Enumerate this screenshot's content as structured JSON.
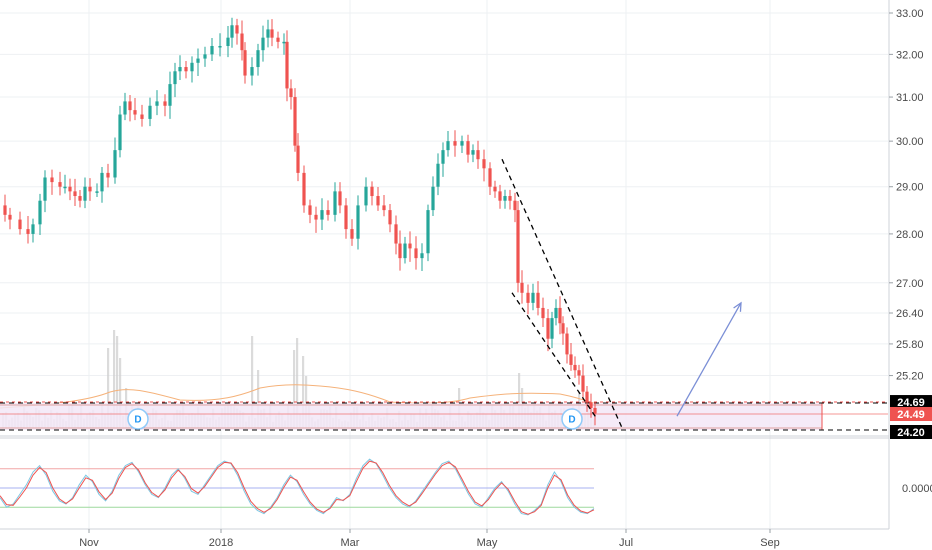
{
  "colors": {
    "up": "#26a69a",
    "down": "#ef5350",
    "volume": "#cfcfcf",
    "volume_ma": "#f5b27a",
    "grid": "#eef0f3",
    "channel": "#000000",
    "arrow": "#7b8fd6",
    "stoch_k": "#7ec8e3",
    "stoch_d": "#ef5350",
    "band_upper": "#f2a6a6",
    "band_mid": "#a7b0f0",
    "band_lower": "#9ed99e",
    "zone": "#f3e8f7"
  },
  "chart_data": [
    {
      "type": "candlestick",
      "title": "",
      "x_ticks": [
        "Nov",
        "2018",
        "Mar",
        "May",
        "Jul",
        "Sep"
      ],
      "y_ticks": [
        "24.20",
        "24.69",
        "25.20",
        "25.80",
        "26.40",
        "27.00",
        "28.00",
        "29.00",
        "30.00",
        "31.00",
        "32.00",
        "33.00"
      ],
      "axis": {
        "y_scale": "log",
        "ylim": [
          24.1,
          33.1
        ]
      },
      "price_labels": [
        {
          "label": "24.69",
          "style": "dark"
        },
        {
          "label": "24.49",
          "style": "red"
        },
        {
          "label": "24.20",
          "style": "dark"
        }
      ],
      "support_lines": [
        24.69,
        24.2
      ],
      "marker_labels": [
        "D",
        "D"
      ],
      "series_path": [
        [
          0,
          28.6
        ],
        [
          5,
          28.4
        ],
        [
          10,
          28.3
        ],
        [
          20,
          28.1
        ],
        [
          28,
          28.0
        ],
        [
          33,
          28.2
        ],
        [
          40,
          28.7
        ],
        [
          45,
          29.2
        ],
        [
          52,
          29.1
        ],
        [
          60,
          29.0
        ],
        [
          65,
          29.0
        ],
        [
          70,
          28.9
        ],
        [
          75,
          28.8
        ],
        [
          80,
          28.7
        ],
        [
          85,
          29.0
        ],
        [
          90,
          28.9
        ],
        [
          97,
          28.9
        ],
        [
          102,
          29.3
        ],
        [
          108,
          29.2
        ],
        [
          115,
          29.8
        ],
        [
          120,
          30.6
        ],
        [
          125,
          30.9
        ],
        [
          130,
          30.7
        ],
        [
          135,
          30.6
        ],
        [
          142,
          30.5
        ],
        [
          150,
          30.8
        ],
        [
          157,
          30.9
        ],
        [
          165,
          30.8
        ],
        [
          170,
          31.3
        ],
        [
          175,
          31.6
        ],
        [
          180,
          31.7
        ],
        [
          186,
          31.6
        ],
        [
          192,
          31.8
        ],
        [
          198,
          31.9
        ],
        [
          205,
          32.0
        ],
        [
          212,
          32.2
        ],
        [
          220,
          32.2
        ],
        [
          228,
          32.4
        ],
        [
          232,
          32.7
        ],
        [
          237,
          32.5
        ],
        [
          242,
          32.1
        ],
        [
          245,
          31.5
        ],
        [
          252,
          31.7
        ],
        [
          258,
          32.1
        ],
        [
          263,
          32.4
        ],
        [
          268,
          32.6
        ],
        [
          272,
          32.4
        ],
        [
          278,
          32.3
        ],
        [
          284,
          32.3
        ],
        [
          287,
          31.2
        ],
        [
          291,
          31.0
        ],
        [
          295,
          29.9
        ],
        [
          298,
          29.3
        ],
        [
          304,
          28.6
        ],
        [
          310,
          28.4
        ],
        [
          316,
          28.3
        ],
        [
          322,
          28.5
        ],
        [
          328,
          28.4
        ],
        [
          335,
          28.9
        ],
        [
          340,
          28.6
        ],
        [
          346,
          28.1
        ],
        [
          352,
          27.9
        ],
        [
          358,
          28.6
        ],
        [
          366,
          29.0
        ],
        [
          372,
          28.8
        ],
        [
          378,
          28.6
        ],
        [
          384,
          28.5
        ],
        [
          390,
          28.2
        ],
        [
          396,
          27.8
        ],
        [
          400,
          27.5
        ],
        [
          405,
          27.8
        ],
        [
          410,
          27.7
        ],
        [
          416,
          27.5
        ],
        [
          422,
          27.6
        ],
        [
          428,
          28.5
        ],
        [
          433,
          29.0
        ],
        [
          438,
          29.5
        ],
        [
          443,
          29.8
        ],
        [
          448,
          30.0
        ],
        [
          455,
          29.9
        ],
        [
          462,
          30.0
        ],
        [
          468,
          29.7
        ],
        [
          473,
          29.8
        ],
        [
          478,
          29.6
        ],
        [
          484,
          29.4
        ],
        [
          490,
          29.0
        ],
        [
          495,
          28.9
        ],
        [
          500,
          28.7
        ],
        [
          505,
          28.8
        ],
        [
          510,
          28.7
        ],
        [
          515,
          28.5
        ],
        [
          518,
          27.0
        ],
        [
          522,
          26.8
        ],
        [
          528,
          26.6
        ],
        [
          533,
          26.8
        ],
        [
          538,
          26.5
        ],
        [
          543,
          26.3
        ],
        [
          548,
          25.9
        ],
        [
          552,
          26.3
        ],
        [
          556,
          26.5
        ],
        [
          560,
          26.2
        ],
        [
          563,
          26.0
        ],
        [
          567,
          25.6
        ],
        [
          571,
          25.4
        ],
        [
          575,
          25.3
        ],
        [
          579,
          25.2
        ],
        [
          583,
          24.9
        ],
        [
          587,
          24.7
        ],
        [
          591,
          24.6
        ],
        [
          595,
          24.5
        ]
      ],
      "channel_upper": [
        [
          502,
          29.6
        ],
        [
          623,
          24.2
        ]
      ],
      "channel_lower": [
        [
          512,
          26.8
        ],
        [
          597,
          24.4
        ]
      ],
      "projection_arrow": [
        [
          677,
          24.45
        ],
        [
          741,
          26.6
        ]
      ]
    },
    {
      "type": "line",
      "title": "",
      "y_ticks": [
        "0.0000"
      ],
      "bands": [
        80,
        50,
        20
      ],
      "series": [
        {
          "values": [
            35,
            20,
            25,
            40,
            55,
            75,
            85,
            70,
            45,
            30,
            25,
            35,
            55,
            70,
            60,
            40,
            30,
            45,
            70,
            85,
            90,
            75,
            55,
            40,
            35,
            50,
            70,
            80,
            65,
            45,
            40,
            55,
            70,
            85,
            92,
            88,
            70,
            45,
            25,
            15,
            10,
            20,
            35,
            55,
            70,
            60,
            40,
            25,
            15,
            10,
            20,
            35,
            30,
            40,
            65,
            85,
            95,
            88,
            70,
            50,
            35,
            25,
            20,
            30,
            45,
            60,
            75,
            88,
            92,
            80,
            60,
            40,
            25,
            20,
            35,
            50,
            60,
            45,
            25,
            10,
            8,
            15,
            25,
            55,
            75,
            60,
            35,
            20,
            12,
            10,
            18
          ]
        },
        {
          "values": [
            38,
            24,
            23,
            36,
            50,
            70,
            82,
            74,
            50,
            33,
            26,
            33,
            50,
            66,
            62,
            44,
            32,
            42,
            65,
            82,
            88,
            78,
            58,
            43,
            36,
            47,
            66,
            78,
            68,
            49,
            42,
            52,
            67,
            82,
            90,
            89,
            74,
            50,
            29,
            18,
            12,
            18,
            32,
            51,
            67,
            62,
            44,
            28,
            17,
            12,
            18,
            32,
            31,
            38,
            60,
            81,
            92,
            89,
            74,
            54,
            38,
            28,
            22,
            28,
            42,
            57,
            72,
            85,
            90,
            83,
            64,
            44,
            28,
            22,
            32,
            47,
            58,
            48,
            29,
            13,
            9,
            13,
            23,
            50,
            70,
            63,
            39,
            23,
            14,
            11,
            16
          ]
        }
      ]
    }
  ]
}
